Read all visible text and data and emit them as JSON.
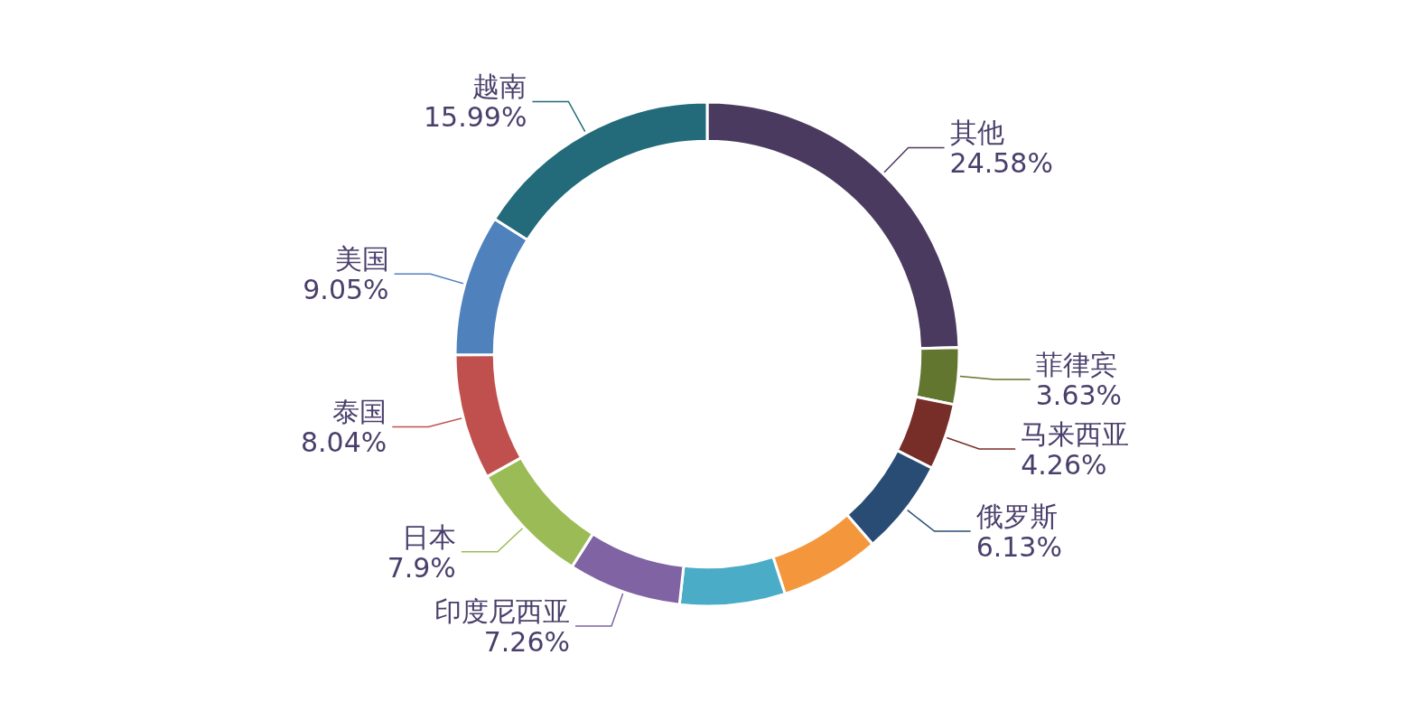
{
  "chart_data": {
    "type": "donut",
    "categories": [
      "其他",
      "菲律宾",
      "马来西亚",
      "俄罗斯",
      null,
      null,
      "印度尼西亚",
      "日本",
      "泰国",
      "美国",
      "越南"
    ],
    "values": [
      24.58,
      3.63,
      4.26,
      6.13,
      6.4,
      6.76,
      7.26,
      7.9,
      8.04,
      9.05,
      15.99
    ],
    "value_labels": [
      "24.58%",
      "3.63%",
      "4.26%",
      "6.13%",
      null,
      null,
      "7.26%",
      "7.9%",
      "8.04%",
      "9.05%",
      "15.99%"
    ],
    "colors": [
      "#4b3a5f",
      "#62762f",
      "#772d28",
      "#284c74",
      "#f4973c",
      "#4aacc6",
      "#7f63a3",
      "#9bbb57",
      "#c0504d",
      "#4f81bd",
      "#236a7a"
    ]
  }
}
